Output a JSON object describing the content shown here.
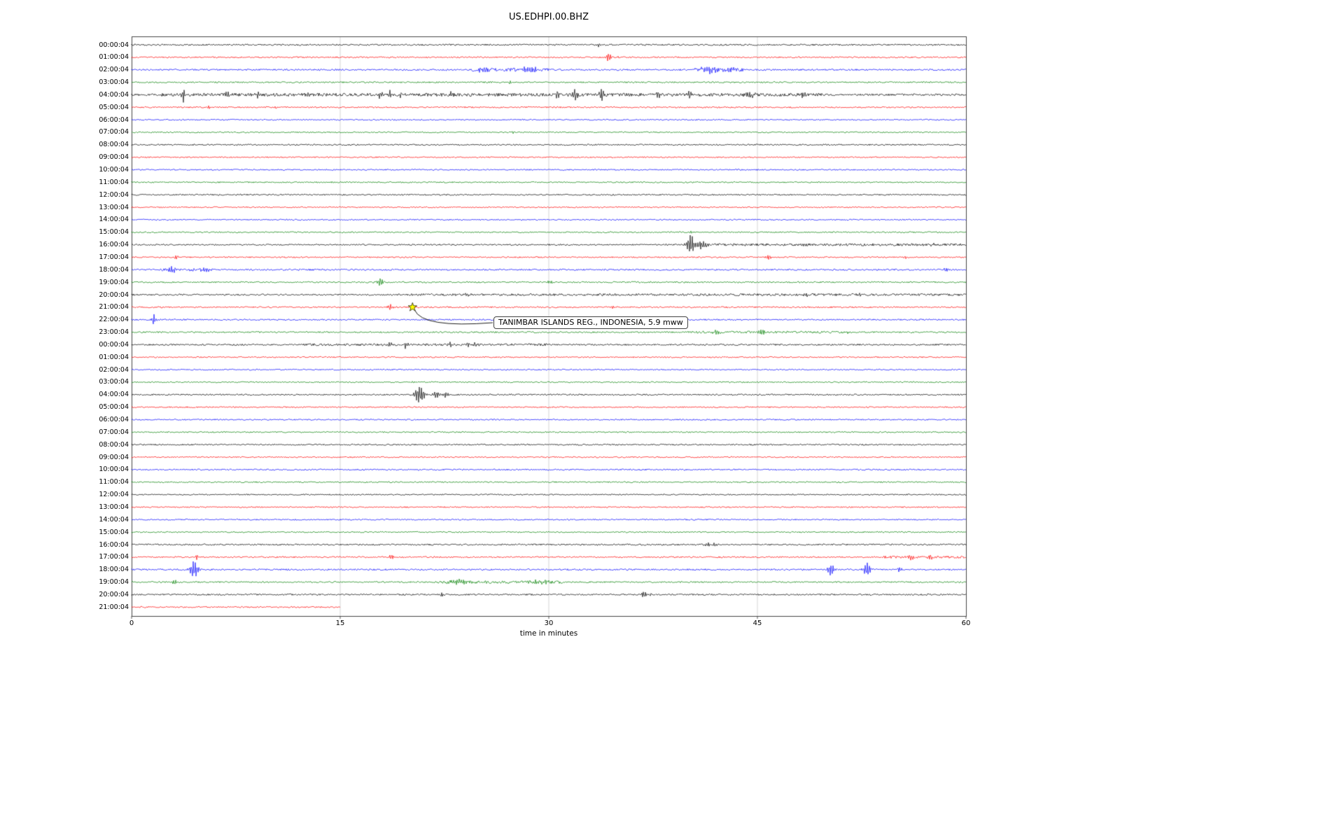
{
  "chart_data": {
    "type": "line",
    "subtype": "helicorder-dayplot",
    "title": "US.EDHPI.00.BHZ",
    "xlabel": "time in minutes",
    "ylabel": "",
    "xlim": [
      0,
      60
    ],
    "x_ticks": [
      0,
      15,
      30,
      45,
      60
    ],
    "grid": true,
    "color_cycle": [
      "#000000",
      "#ff0000",
      "#0000ff",
      "#008000"
    ],
    "annotation": {
      "text": "TANIMBAR ISLANDS REG., INDONESIA, 5.9 mww",
      "row_index": 21,
      "row_label": "21:00:04",
      "minute": 20.2,
      "marker": "star-icon",
      "marker_color": "#ffff00"
    },
    "rows": [
      {
        "label": "00:00:04",
        "color": "#000000",
        "noise": 1.1,
        "events": [
          {
            "m": 33.6,
            "a": 2.5,
            "s": 0.08
          }
        ]
      },
      {
        "label": "01:00:04",
        "color": "#ff0000",
        "noise": 1.0,
        "events": [
          {
            "m": 34.3,
            "a": 6,
            "s": 0.12
          },
          {
            "m": 35.0,
            "a": 2.5,
            "s": 0.1
          }
        ]
      },
      {
        "label": "02:00:04",
        "color": "#0000ff",
        "noise": 1.1,
        "bursts": [
          {
            "from": 24.5,
            "to": 30,
            "a": 1.2
          },
          {
            "from": 40.5,
            "to": 44,
            "a": 1.5
          }
        ],
        "events": [
          {
            "m": 25.3,
            "a": 3,
            "s": 0.3
          },
          {
            "m": 28.6,
            "a": 3.5,
            "s": 0.5
          },
          {
            "m": 41.5,
            "a": 4,
            "s": 0.4
          },
          {
            "m": 43.2,
            "a": 3,
            "s": 0.3
          }
        ]
      },
      {
        "label": "03:00:04",
        "color": "#008000",
        "noise": 1.0,
        "events": [
          {
            "m": 27.2,
            "a": 2,
            "s": 0.1
          }
        ]
      },
      {
        "label": "04:00:04",
        "color": "#000000",
        "noise": 1.4,
        "bursts": [
          {
            "from": 2,
            "to": 50,
            "a": 0.8
          }
        ],
        "events": [
          {
            "m": 3.7,
            "a": 10,
            "s": 0.12
          },
          {
            "m": 6.9,
            "a": 4,
            "s": 0.1
          },
          {
            "m": 9.1,
            "a": 4.5,
            "s": 0.1
          },
          {
            "m": 12.6,
            "a": 5.5,
            "s": 0.1
          },
          {
            "m": 13.4,
            "a": 3,
            "s": 0.08
          },
          {
            "m": 17.9,
            "a": 5,
            "s": 0.12
          },
          {
            "m": 18.6,
            "a": 6,
            "s": 0.1
          },
          {
            "m": 19.3,
            "a": 4,
            "s": 0.08
          },
          {
            "m": 23.0,
            "a": 4,
            "s": 0.1
          },
          {
            "m": 30.6,
            "a": 6,
            "s": 0.1
          },
          {
            "m": 31.9,
            "a": 7,
            "s": 0.12
          },
          {
            "m": 33.8,
            "a": 9,
            "s": 0.12
          },
          {
            "m": 37.9,
            "a": 4.5,
            "s": 0.1
          },
          {
            "m": 40.1,
            "a": 5,
            "s": 0.12
          },
          {
            "m": 44.5,
            "a": 3,
            "s": 0.3
          },
          {
            "m": 48.3,
            "a": 5,
            "s": 0.12
          }
        ]
      },
      {
        "label": "05:00:04",
        "color": "#ff0000",
        "noise": 1.0,
        "events": [
          {
            "m": 5.6,
            "a": 2,
            "s": 0.08
          },
          {
            "m": 10.4,
            "a": 2,
            "s": 0.08
          }
        ]
      },
      {
        "label": "06:00:04",
        "color": "#0000ff",
        "noise": 0.9,
        "events": []
      },
      {
        "label": "07:00:04",
        "color": "#008000",
        "noise": 0.9,
        "events": [
          {
            "m": 27.4,
            "a": 1.8,
            "s": 0.1
          }
        ]
      },
      {
        "label": "08:00:04",
        "color": "#000000",
        "noise": 1.0,
        "events": []
      },
      {
        "label": "09:00:04",
        "color": "#ff0000",
        "noise": 0.9,
        "events": []
      },
      {
        "label": "10:00:04",
        "color": "#0000ff",
        "noise": 0.9,
        "events": []
      },
      {
        "label": "11:00:04",
        "color": "#008000",
        "noise": 0.9,
        "events": []
      },
      {
        "label": "12:00:04",
        "color": "#000000",
        "noise": 1.0,
        "events": []
      },
      {
        "label": "13:00:04",
        "color": "#ff0000",
        "noise": 0.9,
        "events": []
      },
      {
        "label": "14:00:04",
        "color": "#0000ff",
        "noise": 0.9,
        "events": []
      },
      {
        "label": "15:00:04",
        "color": "#008000",
        "noise": 0.9,
        "events": [
          {
            "m": 40.3,
            "a": 2,
            "s": 0.1
          }
        ]
      },
      {
        "label": "16:00:04",
        "color": "#000000",
        "noise": 1.0,
        "bursts": [
          {
            "from": 40,
            "to": 60,
            "a": 0.7
          }
        ],
        "events": [
          {
            "m": 40.2,
            "a": 13,
            "s": 0.2
          },
          {
            "m": 41.0,
            "a": 5,
            "s": 0.3
          },
          {
            "m": 48.6,
            "a": 3,
            "s": 0.15
          },
          {
            "m": 53.4,
            "a": 2.5,
            "s": 0.12
          },
          {
            "m": 57.6,
            "a": 2,
            "s": 0.1
          }
        ]
      },
      {
        "label": "17:00:04",
        "color": "#ff0000",
        "noise": 0.9,
        "events": [
          {
            "m": 3.2,
            "a": 3,
            "s": 0.1
          },
          {
            "m": 45.8,
            "a": 3,
            "s": 0.12
          },
          {
            "m": 55.6,
            "a": 2,
            "s": 0.1
          }
        ]
      },
      {
        "label": "18:00:04",
        "color": "#0000ff",
        "noise": 1.1,
        "bursts": [
          {
            "from": 2,
            "to": 6,
            "a": 0.8
          }
        ],
        "events": [
          {
            "m": 2.8,
            "a": 4,
            "s": 0.3
          },
          {
            "m": 5.3,
            "a": 3,
            "s": 0.2
          },
          {
            "m": 58.6,
            "a": 3,
            "s": 0.15
          }
        ]
      },
      {
        "label": "19:00:04",
        "color": "#008000",
        "noise": 1.0,
        "events": [
          {
            "m": 17.9,
            "a": 5.5,
            "s": 0.15
          },
          {
            "m": 30.1,
            "a": 2,
            "s": 0.2
          }
        ]
      },
      {
        "label": "20:00:04",
        "color": "#000000",
        "noise": 1.1,
        "bursts": [
          {
            "from": 20,
            "to": 60,
            "a": 0.5
          }
        ],
        "events": [
          {
            "m": 24.1,
            "a": 2.2,
            "s": 0.2
          },
          {
            "m": 48.6,
            "a": 2.5,
            "s": 0.15
          },
          {
            "m": 52.3,
            "a": 2,
            "s": 0.12
          }
        ]
      },
      {
        "label": "21:00:04",
        "color": "#ff0000",
        "noise": 1.0,
        "events": [
          {
            "m": 18.6,
            "a": 5,
            "s": 0.12
          },
          {
            "m": 34.6,
            "a": 2,
            "s": 0.1
          }
        ]
      },
      {
        "label": "22:00:04",
        "color": "#0000ff",
        "noise": 1.0,
        "events": [
          {
            "m": 1.6,
            "a": 7,
            "s": 0.1
          }
        ]
      },
      {
        "label": "23:00:04",
        "color": "#008000",
        "noise": 1.0,
        "bursts": [
          {
            "from": 40,
            "to": 52,
            "a": 0.6
          }
        ],
        "events": [
          {
            "m": 42.1,
            "a": 3,
            "s": 0.2
          },
          {
            "m": 45.3,
            "a": 3,
            "s": 0.2
          },
          {
            "m": 51.5,
            "a": 2,
            "s": 0.15
          }
        ]
      },
      {
        "label": "00:00:04",
        "color": "#000000",
        "noise": 1.1,
        "bursts": [
          {
            "from": 12,
            "to": 30,
            "a": 0.5
          }
        ],
        "events": [
          {
            "m": 18.6,
            "a": 4,
            "s": 0.1
          },
          {
            "m": 19.7,
            "a": 5,
            "s": 0.1
          },
          {
            "m": 22.9,
            "a": 3,
            "s": 0.1
          },
          {
            "m": 24.2,
            "a": 4.5,
            "s": 0.1
          },
          {
            "m": 24.7,
            "a": 3.5,
            "s": 0.08
          }
        ]
      },
      {
        "label": "01:00:04",
        "color": "#ff0000",
        "noise": 0.9,
        "events": []
      },
      {
        "label": "02:00:04",
        "color": "#0000ff",
        "noise": 0.9,
        "events": []
      },
      {
        "label": "03:00:04",
        "color": "#008000",
        "noise": 0.9,
        "events": [
          {
            "m": 20.3,
            "a": 1.8,
            "s": 0.1
          }
        ]
      },
      {
        "label": "04:00:04",
        "color": "#000000",
        "noise": 1.0,
        "events": [
          {
            "m": 20.7,
            "a": 11,
            "s": 0.25
          },
          {
            "m": 21.9,
            "a": 5,
            "s": 0.15
          },
          {
            "m": 22.6,
            "a": 4,
            "s": 0.12
          }
        ]
      },
      {
        "label": "05:00:04",
        "color": "#ff0000",
        "noise": 0.9,
        "events": []
      },
      {
        "label": "06:00:04",
        "color": "#0000ff",
        "noise": 0.9,
        "events": []
      },
      {
        "label": "07:00:04",
        "color": "#008000",
        "noise": 0.9,
        "events": []
      },
      {
        "label": "08:00:04",
        "color": "#000000",
        "noise": 1.0,
        "events": []
      },
      {
        "label": "09:00:04",
        "color": "#ff0000",
        "noise": 0.9,
        "events": []
      },
      {
        "label": "10:00:04",
        "color": "#0000ff",
        "noise": 1.0,
        "events": []
      },
      {
        "label": "11:00:04",
        "color": "#008000",
        "noise": 0.9,
        "events": []
      },
      {
        "label": "12:00:04",
        "color": "#000000",
        "noise": 0.9,
        "events": []
      },
      {
        "label": "13:00:04",
        "color": "#ff0000",
        "noise": 0.9,
        "events": []
      },
      {
        "label": "14:00:04",
        "color": "#0000ff",
        "noise": 0.9,
        "events": []
      },
      {
        "label": "15:00:04",
        "color": "#008000",
        "noise": 0.9,
        "events": []
      },
      {
        "label": "16:00:04",
        "color": "#000000",
        "noise": 1.1,
        "events": [
          {
            "m": 41.4,
            "a": 3,
            "s": 0.15
          },
          {
            "m": 41.9,
            "a": 2.5,
            "s": 0.1
          }
        ]
      },
      {
        "label": "17:00:04",
        "color": "#ff0000",
        "noise": 1.0,
        "bursts": [
          {
            "from": 54,
            "to": 60,
            "a": 0.8
          }
        ],
        "events": [
          {
            "m": 4.7,
            "a": 3,
            "s": 0.1
          },
          {
            "m": 18.7,
            "a": 4,
            "s": 0.12
          },
          {
            "m": 56.1,
            "a": 3.5,
            "s": 0.2
          },
          {
            "m": 57.4,
            "a": 3,
            "s": 0.15
          }
        ]
      },
      {
        "label": "18:00:04",
        "color": "#0000ff",
        "noise": 1.1,
        "events": [
          {
            "m": 4.5,
            "a": 12,
            "s": 0.2
          },
          {
            "m": 50.3,
            "a": 8,
            "s": 0.18
          },
          {
            "m": 52.9,
            "a": 9,
            "s": 0.18
          },
          {
            "m": 55.2,
            "a": 3,
            "s": 0.12
          }
        ]
      },
      {
        "label": "19:00:04",
        "color": "#008000",
        "noise": 1.0,
        "bursts": [
          {
            "from": 22,
            "to": 31,
            "a": 1.0
          }
        ],
        "events": [
          {
            "m": 3.1,
            "a": 4,
            "s": 0.1
          },
          {
            "m": 23.6,
            "a": 3,
            "s": 0.5
          },
          {
            "m": 29.4,
            "a": 3,
            "s": 0.5
          }
        ]
      },
      {
        "label": "20:00:04",
        "color": "#000000",
        "noise": 1.1,
        "events": [
          {
            "m": 22.3,
            "a": 3,
            "s": 0.12
          },
          {
            "m": 36.8,
            "a": 4,
            "s": 0.15
          },
          {
            "m": 37.3,
            "a": 2.5,
            "s": 0.1
          }
        ]
      },
      {
        "label": "21:00:04",
        "color": "#ff0000",
        "noise": 1.0,
        "extent": 15,
        "events": []
      }
    ]
  }
}
